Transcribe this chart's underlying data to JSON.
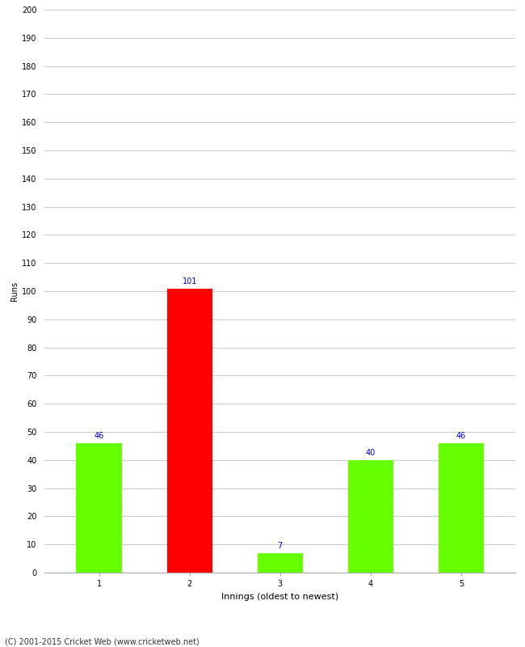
{
  "categories": [
    "1",
    "2",
    "3",
    "4",
    "5"
  ],
  "values": [
    46,
    101,
    7,
    40,
    46
  ],
  "bar_colors": [
    "#66ff00",
    "#ff0000",
    "#66ff00",
    "#66ff00",
    "#66ff00"
  ],
  "ylabel": "Runs",
  "xlabel": "Innings (oldest to newest)",
  "ylim": [
    0,
    200
  ],
  "yticks": [
    0,
    10,
    20,
    30,
    40,
    50,
    60,
    70,
    80,
    90,
    100,
    110,
    120,
    130,
    140,
    150,
    160,
    170,
    180,
    190,
    200
  ],
  "label_color": "#0000cc",
  "label_fontsize": 7,
  "ylabel_fontsize": 7,
  "xlabel_fontsize": 8,
  "tick_fontsize": 7,
  "footer": "(C) 2001-2015 Cricket Web (www.cricketweb.net)",
  "background_color": "#ffffff",
  "grid_color": "#cccccc",
  "bar_width": 0.5
}
